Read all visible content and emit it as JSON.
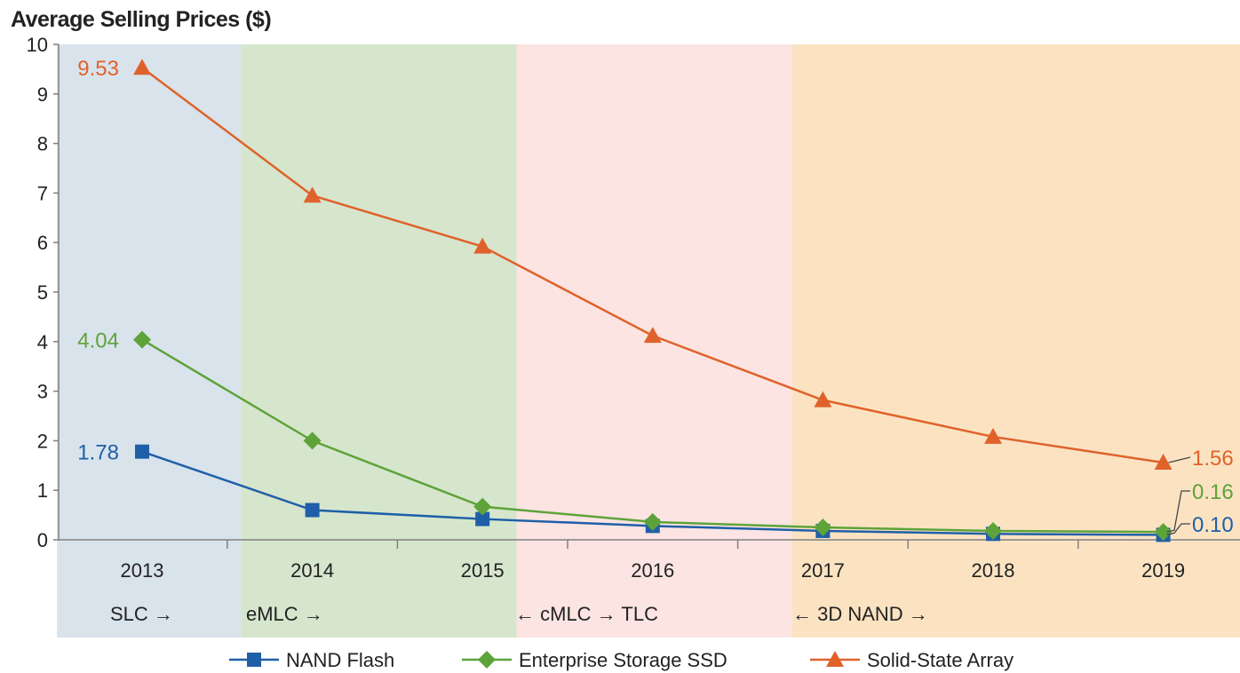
{
  "chart_data": {
    "type": "line",
    "title": "Average Selling Prices ($)",
    "xlabel": "",
    "ylabel": "",
    "ylim": [
      0,
      10
    ],
    "yticks": [
      0,
      1,
      2,
      3,
      4,
      5,
      6,
      7,
      8,
      9,
      10
    ],
    "categories": [
      "2013",
      "2014",
      "2015",
      "2016",
      "2017",
      "2018",
      "2019"
    ],
    "grid": false,
    "legend_position": "bottom",
    "series": [
      {
        "name": "NAND Flash",
        "color": "#1f5fa8",
        "marker": "square",
        "values": [
          1.78,
          0.6,
          0.42,
          0.28,
          0.18,
          0.12,
          0.1
        ]
      },
      {
        "name": "Enterprise Storage SSD",
        "color": "#5ea33a",
        "marker": "diamond",
        "values": [
          4.04,
          2.0,
          0.67,
          0.36,
          0.25,
          0.18,
          0.16
        ]
      },
      {
        "name": "Solid-State Array",
        "color": "#e0622b",
        "marker": "triangle",
        "values": [
          9.53,
          6.95,
          5.92,
          4.12,
          2.82,
          2.08,
          1.56
        ]
      }
    ],
    "data_labels": [
      {
        "series": "Solid-State Array",
        "index": 0,
        "text": "9.53",
        "side": "left"
      },
      {
        "series": "Enterprise Storage SSD",
        "index": 0,
        "text": "4.04",
        "side": "left"
      },
      {
        "series": "NAND Flash",
        "index": 0,
        "text": "1.78",
        "side": "left"
      },
      {
        "series": "Solid-State Array",
        "index": 6,
        "text": "1.56",
        "side": "right"
      },
      {
        "series": "Enterprise Storage SSD",
        "index": 6,
        "text": "0.16",
        "side": "right"
      },
      {
        "series": "NAND Flash",
        "index": 6,
        "text": "0.10",
        "side": "right"
      }
    ],
    "bands": [
      {
        "name": "SLC",
        "text": "SLC →",
        "color": "#d9e3ec",
        "start": 2012.5,
        "end": 2013.58
      },
      {
        "name": "eMLC",
        "text": "eMLC →",
        "color": "#d6e6cd",
        "start": 2013.58,
        "end": 2015.2
      },
      {
        "name": "cMLC-TLC",
        "text": "← cMLC →   TLC",
        "color": "#fbe4e2",
        "start": 2015.2,
        "end": 2016.82
      },
      {
        "name": "3D-NAND",
        "text": "←      3D  NAND      →",
        "color": "#fbe3c2",
        "start": 2016.82,
        "end": 2019.5
      }
    ]
  }
}
